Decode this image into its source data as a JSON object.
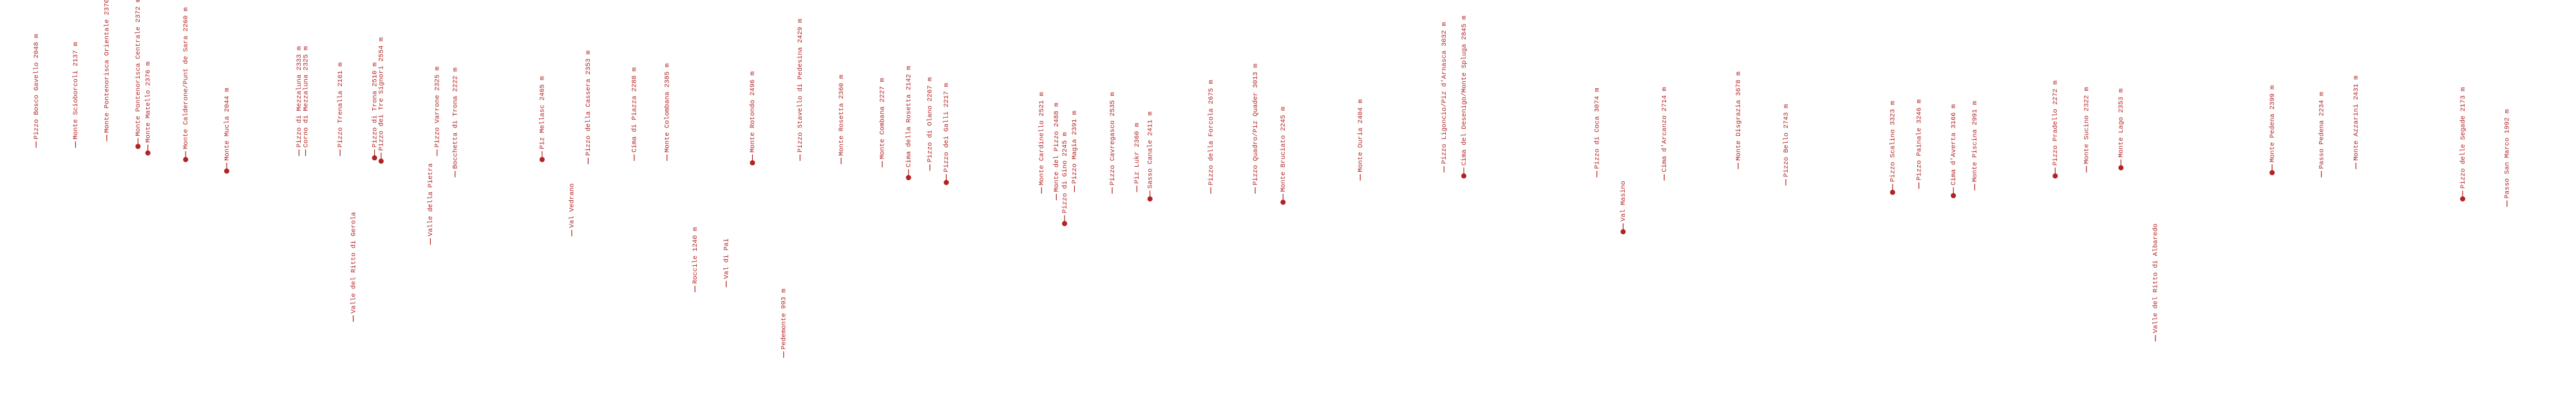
{
  "labels": [
    "Pizzo Bosco Gavello 2048 m",
    "Monte Scioborcoli 2137 m",
    "Monte Pontenorisca Orientale 2370 m",
    "Monte Pontenorisca Centrale 2372 m",
    "Monte Matello 2376 m",
    "Monte Calderone/Punt de Sara 2260 m",
    "Monte Mucla 2044 m",
    "Pizzo di Mezzaluna 2333 m",
    "Corno di Mezzaluna 2325 m",
    "Pizzo Trenalla 2161 m",
    "Valle del Ritto di Gerola",
    "Pizzo di Trona 2510 m",
    "Pizzo dei Tre Signori 2554 m",
    "Valle della Pietra",
    "Pizzo Varrone 2325 m",
    "Bocchetta di Trona 2222 m",
    "Piz Mellasc 2465 m",
    "Val Vedrano",
    "Pizzo della Cassera 2353 m",
    "Cima di Piazza 2288 m",
    "Monte Colombana 2385 m",
    "Roccile 1240 m",
    "Val di Pai",
    "Monte Rotondo 2496 m",
    "Pedemonte 993 m",
    "Pizzo Stavello di Pedesina 2429 m",
    "Monte Rosetta 2360 m",
    "Monte Combana 2227 m",
    "Cima della Rosetta 2142 m",
    "Pizzo di Olano 2267 m",
    "Pizzo dei Galli 2217 m",
    "Monte Cardinello 2521 m",
    "Monte del Pizzo 2488 m",
    "Pizzo di Gino 2245 m",
    "Pizzo Magia 2391 m",
    "Pizzo Cavregasco 2535 m",
    "Piz Lukr 2360 m",
    "Sasso Canale 2411 m",
    "Pizzo della Forcola 2675 m",
    "Pizzo Quadro/Piz Quader 3013 m",
    "Monte Bruciato 2245 m",
    "Monte Duria 2404 m",
    "Pizzo Ligoncio/Piz d'Arnasca 3032 m",
    "Cima del Desenigo/Monte Spluga 2845 m",
    "Pizzo di Coca 3074 m",
    "Val Masino",
    "Cima d'Arcanzo 2714 m",
    "Monte Disgrazia 3678 m",
    "Pizzo Bello 2743 m",
    "Pizzo Scalino 3323 m",
    "Pizzo Painale 3246 m",
    "Cima d'Averta 3166 m",
    "Monte Piscina 2991 m",
    "Pizzo Pradello 2272 m",
    "Monte Sucino 2322 m",
    "Monte Lago 2353 m",
    "Valle del Ritto di Albaredo",
    "Monte Pedena 2399 m",
    "Passo Pedena 2234 m",
    "Monte Azzarini 2431 m",
    "Pizzo delle Segade 2173 m",
    "Passo San Marco 1992 m"
  ]
}
